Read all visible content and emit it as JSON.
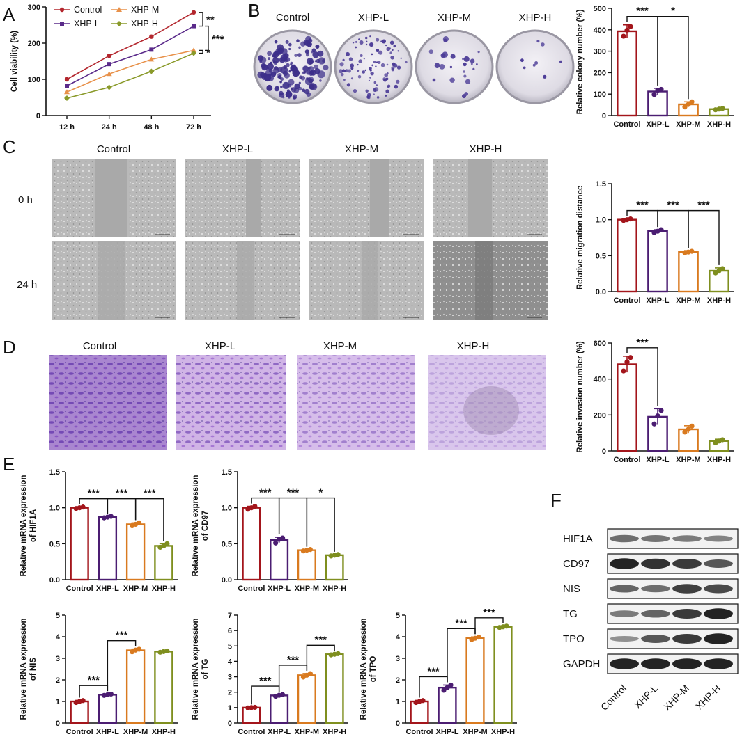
{
  "panel_labels": [
    "A",
    "B",
    "C",
    "D",
    "E",
    "F"
  ],
  "groups": [
    "Control",
    "XHP-L",
    "XHP-M",
    "XHP-H"
  ],
  "colors": {
    "Control": "#a3151b",
    "XHP-L": "#4b1d72",
    "XHP-M": "#d97a1f",
    "XHP-H": "#7f8f1f",
    "Control_line": "#b3262d",
    "XHP-L_line": "#5a2a8a",
    "XHP-M_line": "#e8914a",
    "XHP-H_line": "#8a9a2a"
  },
  "image_panels": {
    "B": {
      "titles": [
        "Control",
        "XHP-L",
        "XHP-M",
        "XHP-H"
      ]
    },
    "C": {
      "titles": [
        "Control",
        "XHP-L",
        "XHP-M",
        "XHP-H"
      ],
      "rows": [
        "0 h",
        "24 h"
      ]
    },
    "D": {
      "titles": [
        "Control",
        "XHP-L",
        "XHP-M",
        "XHP-H"
      ]
    }
  },
  "western_blot": {
    "proteins": [
      "HIF1A",
      "CD97",
      "NIS",
      "TG",
      "TPO",
      "GAPDH"
    ],
    "lanes": [
      "Control",
      "XHP-L",
      "XHP-M",
      "XHP-H"
    ]
  },
  "chart_data": [
    {
      "id": "A",
      "type": "line",
      "x": [
        "12 h",
        "24 h",
        "48 h",
        "72 h"
      ],
      "ylabel": "Cell viability (%)",
      "ylim": [
        0,
        300
      ],
      "yticks": [
        0,
        100,
        200,
        300
      ],
      "series": [
        {
          "name": "Control",
          "values": [
            100,
            165,
            218,
            285
          ]
        },
        {
          "name": "XHP-L",
          "values": [
            82,
            142,
            182,
            247
          ]
        },
        {
          "name": "XHP-M",
          "values": [
            65,
            115,
            155,
            180
          ]
        },
        {
          "name": "XHP-H",
          "values": [
            48,
            78,
            122,
            172
          ]
        }
      ],
      "legend": "top-left",
      "significance": [
        "**",
        "***",
        "*"
      ]
    },
    {
      "id": "B",
      "type": "bar",
      "categories": [
        "Control",
        "XHP-L",
        "XHP-M",
        "XHP-H"
      ],
      "values": [
        393,
        112,
        52,
        30
      ],
      "errors": [
        30,
        15,
        12,
        4
      ],
      "points": [
        [
          370,
          398,
          415
        ],
        [
          98,
          118,
          122
        ],
        [
          40,
          52,
          64
        ],
        [
          27,
          30,
          33
        ]
      ],
      "ylabel": "Relative colony number (%)",
      "ylim": [
        0,
        500
      ],
      "yticks": [
        0,
        100,
        200,
        300,
        400,
        500
      ],
      "significance": [
        {
          "from": 0,
          "to": 1,
          "text": "***"
        },
        {
          "from": 1,
          "to": 2,
          "text": "*"
        }
      ]
    },
    {
      "id": "C",
      "type": "bar",
      "categories": [
        "Control",
        "XHP-L",
        "XHP-M",
        "XHP-H"
      ],
      "values": [
        1.0,
        0.84,
        0.55,
        0.29
      ],
      "errors": [
        0.01,
        0.02,
        0.02,
        0.04
      ],
      "points": [
        [
          0.99,
          1.0,
          1.01
        ],
        [
          0.82,
          0.84,
          0.86
        ],
        [
          0.54,
          0.55,
          0.56
        ],
        [
          0.26,
          0.29,
          0.32
        ]
      ],
      "ylabel": "Relative migration distance",
      "ylim": [
        0,
        1.5
      ],
      "yticks": [
        0.0,
        0.5,
        1.0,
        1.5
      ],
      "significance": [
        {
          "from": 0,
          "to": 1,
          "text": "***"
        },
        {
          "from": 1,
          "to": 2,
          "text": "***"
        },
        {
          "from": 2,
          "to": 3,
          "text": "***"
        }
      ]
    },
    {
      "id": "D",
      "type": "bar",
      "categories": [
        "Control",
        "XHP-L",
        "XHP-M",
        "XHP-H"
      ],
      "values": [
        482,
        190,
        120,
        55
      ],
      "errors": [
        45,
        45,
        20,
        10
      ],
      "points": [
        [
          445,
          495,
          520
        ],
        [
          150,
          195,
          225
        ],
        [
          105,
          120,
          138
        ],
        [
          45,
          55,
          62
        ]
      ],
      "ylabel": "Relative invasion number (%)",
      "ylim": [
        0,
        600
      ],
      "yticks": [
        0,
        200,
        400,
        600
      ],
      "significance": [
        {
          "from": 0,
          "to": 1,
          "text": "***"
        }
      ]
    },
    {
      "id": "E1",
      "type": "bar",
      "categories": [
        "Control",
        "XHP-L",
        "XHP-M",
        "XHP-H"
      ],
      "values": [
        1.0,
        0.87,
        0.77,
        0.47
      ],
      "errors": [
        0.01,
        0.01,
        0.02,
        0.03
      ],
      "points": [
        [
          0.99,
          1.0,
          1.01
        ],
        [
          0.86,
          0.87,
          0.88
        ],
        [
          0.75,
          0.77,
          0.79
        ],
        [
          0.45,
          0.47,
          0.5
        ]
      ],
      "ylabel": [
        "Relative mRNA expression",
        "of HIF1A"
      ],
      "ylim": [
        0,
        1.5
      ],
      "yticks": [
        0.0,
        0.5,
        1.0,
        1.5
      ],
      "significance": [
        {
          "from": 0,
          "to": 1,
          "text": "***"
        },
        {
          "from": 1,
          "to": 2,
          "text": "***"
        },
        {
          "from": 2,
          "to": 3,
          "text": "***"
        }
      ]
    },
    {
      "id": "E2",
      "type": "bar",
      "categories": [
        "Control",
        "XHP-L",
        "XHP-M",
        "XHP-H"
      ],
      "values": [
        1.0,
        0.55,
        0.41,
        0.34
      ],
      "errors": [
        0.02,
        0.04,
        0.01,
        0.01
      ],
      "points": [
        [
          0.98,
          1.0,
          1.02
        ],
        [
          0.51,
          0.56,
          0.58
        ],
        [
          0.4,
          0.41,
          0.42
        ],
        [
          0.33,
          0.34,
          0.35
        ]
      ],
      "ylabel": [
        "Relative mRNA expression",
        "of CD97"
      ],
      "ylim": [
        0,
        1.5
      ],
      "yticks": [
        0.0,
        0.5,
        1.0,
        1.5
      ],
      "significance": [
        {
          "from": 0,
          "to": 1,
          "text": "***"
        },
        {
          "from": 1,
          "to": 2,
          "text": "***"
        },
        {
          "from": 2,
          "to": 3,
          "text": "*"
        }
      ]
    },
    {
      "id": "E3",
      "type": "bar",
      "categories": [
        "Control",
        "XHP-L",
        "XHP-M",
        "XHP-H"
      ],
      "values": [
        1.0,
        1.31,
        3.37,
        3.31
      ],
      "errors": [
        0.05,
        0.04,
        0.06,
        0.04
      ],
      "points": [
        [
          0.95,
          1.0,
          1.04
        ],
        [
          1.28,
          1.31,
          1.34
        ],
        [
          3.3,
          3.38,
          3.42
        ],
        [
          3.28,
          3.31,
          3.34
        ]
      ],
      "ylabel": [
        "Relative mRNA expression",
        "of NIS"
      ],
      "ylim": [
        0,
        5
      ],
      "yticks": [
        0,
        1,
        2,
        3,
        4,
        5
      ],
      "significance": [
        {
          "from": 0,
          "to": 1,
          "text": "***"
        },
        {
          "from": 1,
          "to": 2,
          "text": "***"
        }
      ]
    },
    {
      "id": "E4",
      "type": "bar",
      "categories": [
        "Control",
        "XHP-L",
        "XHP-M",
        "XHP-H"
      ],
      "values": [
        1.0,
        1.79,
        3.1,
        4.46
      ],
      "errors": [
        0.02,
        0.06,
        0.11,
        0.04
      ],
      "points": [
        [
          0.98,
          1.0,
          1.02
        ],
        [
          1.73,
          1.8,
          1.84
        ],
        [
          2.98,
          3.1,
          3.2
        ],
        [
          4.42,
          4.46,
          4.5
        ]
      ],
      "ylabel": [
        "Relative mRNA expression",
        "of TG"
      ],
      "ylim": [
        0,
        7
      ],
      "yticks": [
        0,
        1,
        2,
        3,
        4,
        5,
        6,
        7
      ],
      "significance": [
        {
          "from": 0,
          "to": 1,
          "text": "***"
        },
        {
          "from": 1,
          "to": 2,
          "text": "***"
        },
        {
          "from": 2,
          "to": 3,
          "text": "***"
        }
      ]
    },
    {
      "id": "E5",
      "type": "bar",
      "categories": [
        "Control",
        "XHP-L",
        "XHP-M",
        "XHP-H"
      ],
      "values": [
        1.0,
        1.64,
        3.93,
        4.46
      ],
      "errors": [
        0.05,
        0.12,
        0.06,
        0.03
      ],
      "points": [
        [
          0.95,
          1.0,
          1.04
        ],
        [
          1.52,
          1.64,
          1.76
        ],
        [
          3.87,
          3.93,
          3.98
        ],
        [
          4.43,
          4.46,
          4.49
        ]
      ],
      "ylabel": [
        "Relative mRNA expression",
        "of TPO"
      ],
      "ylim": [
        0,
        5
      ],
      "yticks": [
        0,
        1,
        2,
        3,
        4,
        5
      ],
      "significance": [
        {
          "from": 0,
          "to": 1,
          "text": "***"
        },
        {
          "from": 1,
          "to": 2,
          "text": "***"
        },
        {
          "from": 2,
          "to": 3,
          "text": "***"
        }
      ]
    }
  ]
}
